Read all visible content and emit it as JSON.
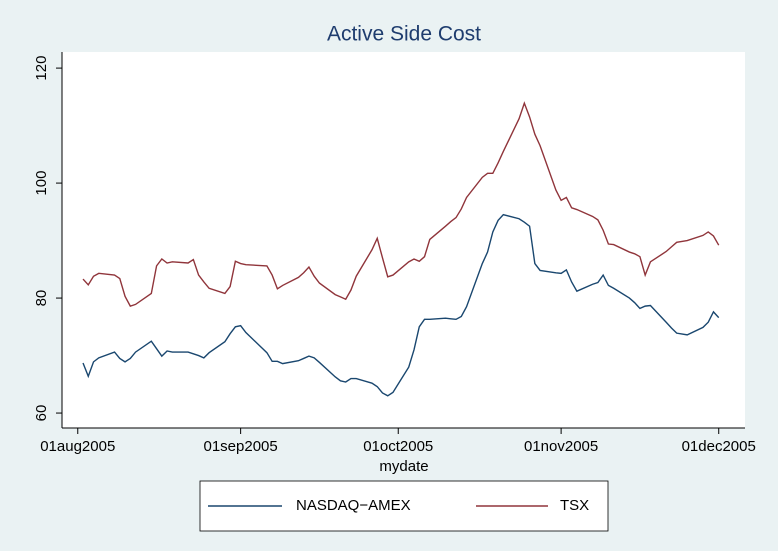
{
  "chart_data": {
    "type": "line",
    "title": "Active Side Cost",
    "xlabel": "mydate",
    "x": [
      "2005-08-02",
      "2005-08-03",
      "2005-08-04",
      "2005-08-05",
      "2005-08-08",
      "2005-08-09",
      "2005-08-10",
      "2005-08-11",
      "2005-08-12",
      "2005-08-15",
      "2005-08-16",
      "2005-08-17",
      "2005-08-18",
      "2005-08-19",
      "2005-08-22",
      "2005-08-23",
      "2005-08-24",
      "2005-08-25",
      "2005-08-26",
      "2005-08-29",
      "2005-08-30",
      "2005-08-31",
      "2005-09-01",
      "2005-09-02",
      "2005-09-06",
      "2005-09-07",
      "2005-09-08",
      "2005-09-09",
      "2005-09-12",
      "2005-09-13",
      "2005-09-14",
      "2005-09-15",
      "2005-09-16",
      "2005-09-19",
      "2005-09-20",
      "2005-09-21",
      "2005-09-22",
      "2005-09-23",
      "2005-09-26",
      "2005-09-27",
      "2005-09-28",
      "2005-09-29",
      "2005-09-30",
      "2005-10-03",
      "2005-10-04",
      "2005-10-05",
      "2005-10-06",
      "2005-10-07",
      "2005-10-10",
      "2005-10-11",
      "2005-10-12",
      "2005-10-13",
      "2005-10-14",
      "2005-10-17",
      "2005-10-18",
      "2005-10-19",
      "2005-10-20",
      "2005-10-21",
      "2005-10-24",
      "2005-10-25",
      "2005-10-26",
      "2005-10-27",
      "2005-10-28",
      "2005-10-31",
      "2005-11-01",
      "2005-11-02",
      "2005-11-03",
      "2005-11-04",
      "2005-11-07",
      "2005-11-08",
      "2005-11-09",
      "2005-11-10",
      "2005-11-11",
      "2005-11-14",
      "2005-11-15",
      "2005-11-16",
      "2005-11-17",
      "2005-11-18",
      "2005-11-21",
      "2005-11-22",
      "2005-11-23",
      "2005-11-25",
      "2005-11-28",
      "2005-11-29",
      "2005-11-30",
      "2005-12-01"
    ],
    "series": [
      {
        "name": "NASDAQ−AMEX",
        "color": "#1a476f",
        "values": [
          68.7,
          66.4,
          68.9,
          69.6,
          70.6,
          69.5,
          68.9,
          69.5,
          70.6,
          72.5,
          71.2,
          69.9,
          70.8,
          70.6,
          70.6,
          70.3,
          70.0,
          69.6,
          70.5,
          72.4,
          73.8,
          75.0,
          75.2,
          74.0,
          70.5,
          69.0,
          69.0,
          68.6,
          69.1,
          69.5,
          69.9,
          69.6,
          68.8,
          66.3,
          65.6,
          65.4,
          66.0,
          66.0,
          65.2,
          64.6,
          63.5,
          63.0,
          63.6,
          68.0,
          71.0,
          75.0,
          76.3,
          76.3,
          76.5,
          76.4,
          76.3,
          76.8,
          78.5,
          86.0,
          88.0,
          91.5,
          93.5,
          94.5,
          93.8,
          93.2,
          92.5,
          86.0,
          84.8,
          84.4,
          84.3,
          84.9,
          82.8,
          81.2,
          82.4,
          82.7,
          84.0,
          82.2,
          81.7,
          80.0,
          79.2,
          78.2,
          78.6,
          78.7,
          75.8,
          74.8,
          73.9,
          73.6,
          74.9,
          75.8,
          77.6,
          76.6
        ]
      },
      {
        "name": "TSX",
        "color": "#90353b",
        "values": [
          83.3,
          82.3,
          83.8,
          84.3,
          84.0,
          83.4,
          80.3,
          78.6,
          78.9,
          80.8,
          85.6,
          86.8,
          86.1,
          86.3,
          86.1,
          86.7,
          84.0,
          82.8,
          81.7,
          80.8,
          82.0,
          86.4,
          86.0,
          85.8,
          85.6,
          84.0,
          81.6,
          82.2,
          83.6,
          84.4,
          85.4,
          83.8,
          82.6,
          80.6,
          80.2,
          79.8,
          81.4,
          83.8,
          88.4,
          90.4,
          87.0,
          83.7,
          84.0,
          86.3,
          86.8,
          86.4,
          87.2,
          90.2,
          92.5,
          93.3,
          94.0,
          95.5,
          97.5,
          101.0,
          101.7,
          101.7,
          103.5,
          105.5,
          111.2,
          113.9,
          111.5,
          108.5,
          106.5,
          98.8,
          97.0,
          97.5,
          95.7,
          95.4,
          94.2,
          93.6,
          91.8,
          89.4,
          89.3,
          88.0,
          87.7,
          87.2,
          84.0,
          86.3,
          88.1,
          88.9,
          89.7,
          90.0,
          90.9,
          91.5,
          90.8,
          89.2
        ]
      }
    ],
    "xlim": [
      "2005-07-29",
      "2005-12-06"
    ],
    "xticks": [
      {
        "value": "2005-08-01",
        "label": "01aug2005"
      },
      {
        "value": "2005-09-01",
        "label": "01sep2005"
      },
      {
        "value": "2005-10-01",
        "label": "01oct2005"
      },
      {
        "value": "2005-11-01",
        "label": "01nov2005"
      },
      {
        "value": "2005-12-01",
        "label": "01dec2005"
      }
    ],
    "ylim": [
      57.4,
      122.8
    ],
    "yticks": [
      60,
      80,
      100,
      120
    ],
    "legend": "bottom"
  }
}
